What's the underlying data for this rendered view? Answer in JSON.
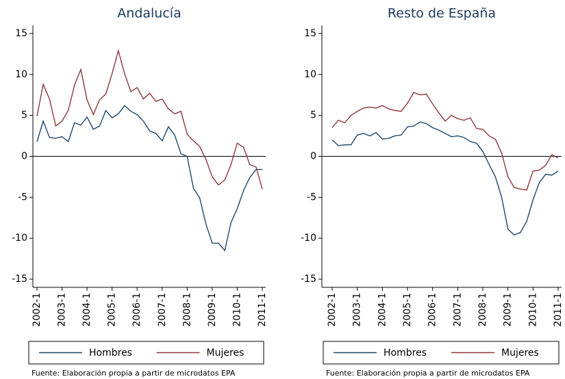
{
  "chart_data": [
    {
      "type": "line",
      "title": "Andalucía",
      "categories": [
        "2002-1",
        null,
        null,
        null,
        "2003-1",
        null,
        null,
        null,
        "2004-1",
        null,
        null,
        null,
        "2005-1",
        null,
        null,
        null,
        "2006-1",
        null,
        null,
        null,
        "2007-1",
        null,
        null,
        null,
        "2008-1",
        null,
        null,
        null,
        "2009-1",
        null,
        null,
        null,
        "2010-1",
        null,
        null,
        null,
        "2011-1"
      ],
      "series": [
        {
          "name": "Hombres",
          "color": "#1a476f",
          "values": [
            1.8,
            4.3,
            2.3,
            2.2,
            2.4,
            1.8,
            4.1,
            3.8,
            4.8,
            3.3,
            3.7,
            5.6,
            4.7,
            5.2,
            6.2,
            5.5,
            5.1,
            4.3,
            3.1,
            2.8,
            1.9,
            3.6,
            2.6,
            0.3,
            0.0,
            -3.9,
            -5.1,
            -8.3,
            -10.6,
            -10.6,
            -11.5,
            -8.1,
            -6.4,
            -4.2,
            -2.6,
            -1.6,
            -1.6
          ]
        },
        {
          "name": "Mujeres",
          "color": "#90353b",
          "values": [
            4.9,
            8.8,
            7.0,
            3.7,
            4.3,
            5.6,
            8.7,
            10.6,
            6.9,
            5.1,
            6.9,
            7.6,
            10.1,
            12.9,
            10.1,
            7.9,
            8.4,
            7.0,
            7.7,
            6.7,
            7.0,
            5.8,
            5.2,
            5.5,
            2.7,
            1.9,
            1.2,
            -0.4,
            -2.5,
            -3.5,
            -2.9,
            -1.0,
            1.6,
            1.1,
            -1.0,
            -1.3,
            -4.0
          ]
        }
      ],
      "ylim": [
        -16,
        16
      ],
      "yticks": [
        -15,
        -10,
        -5,
        0,
        5,
        10,
        15
      ],
      "yline": 0,
      "legend": "bottom",
      "note": "Fuente: Elaboración propia a partir de microdatos EPA"
    },
    {
      "type": "line",
      "title": "Resto de España",
      "categories": [
        "2002-1",
        null,
        null,
        null,
        "2003-1",
        null,
        null,
        null,
        "2004-1",
        null,
        null,
        null,
        "2005-1",
        null,
        null,
        null,
        "2006-1",
        null,
        null,
        null,
        "2007-1",
        null,
        null,
        null,
        "2008-1",
        null,
        null,
        null,
        "2009-1",
        null,
        null,
        null,
        "2010-1",
        null,
        null,
        null,
        "2011-1"
      ],
      "series": [
        {
          "name": "Hombres",
          "color": "#1a476f",
          "values": [
            2.0,
            1.3,
            1.4,
            1.4,
            2.6,
            2.8,
            2.5,
            2.9,
            2.1,
            2.2,
            2.5,
            2.6,
            3.6,
            3.7,
            4.2,
            4.0,
            3.5,
            3.2,
            2.8,
            2.4,
            2.5,
            2.3,
            1.8,
            1.6,
            0.6,
            -1.0,
            -2.5,
            -5.0,
            -8.9,
            -9.6,
            -9.3,
            -7.9,
            -5.3,
            -3.2,
            -2.2,
            -2.3,
            -1.8
          ]
        },
        {
          "name": "Mujeres",
          "color": "#90353b",
          "values": [
            3.5,
            4.4,
            4.1,
            5.0,
            5.5,
            5.9,
            6.0,
            5.9,
            6.2,
            5.8,
            5.6,
            5.5,
            6.5,
            7.8,
            7.5,
            7.6,
            6.4,
            5.3,
            4.3,
            5.0,
            4.6,
            4.4,
            4.7,
            3.4,
            3.3,
            2.5,
            2.1,
            0.4,
            -2.5,
            -3.8,
            -4.0,
            -4.1,
            -1.8,
            -1.7,
            -1.1,
            0.2,
            -0.2
          ]
        }
      ],
      "ylim": [
        -16,
        16
      ],
      "yticks": [
        -15,
        -10,
        -5,
        0,
        5,
        10,
        15
      ],
      "yline": 0,
      "legend": "bottom",
      "note": "Fuente: Elaboración propia a partir de microdatos EPA"
    }
  ]
}
